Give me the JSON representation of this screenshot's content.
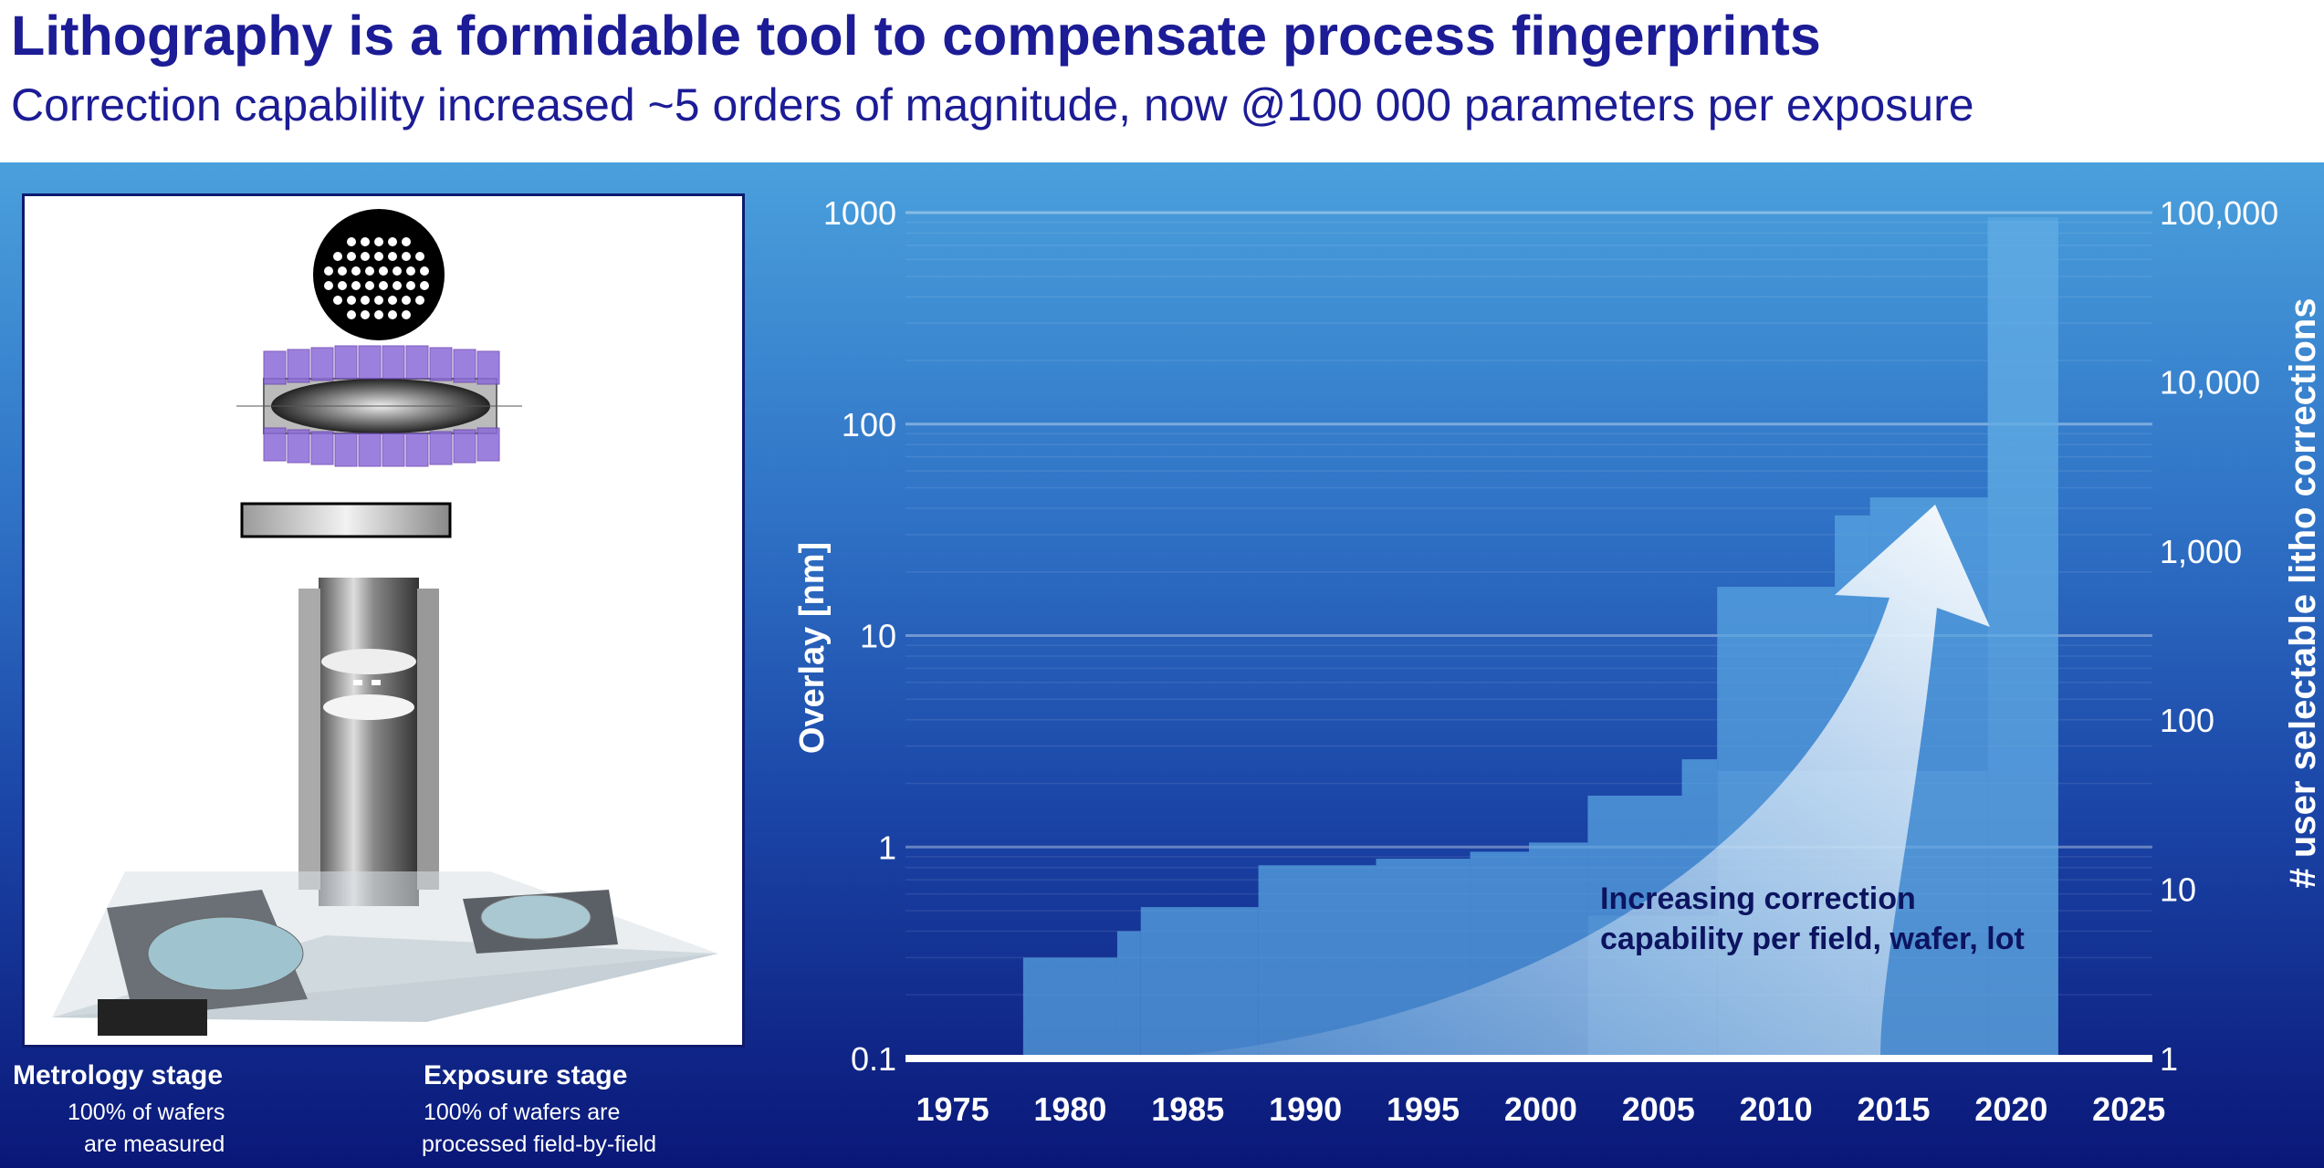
{
  "header": {
    "title": "Lithography is a formidable tool to compensate process fingerprints",
    "subtitle": "Correction capability increased ~5 orders of magnitude, now @100 000 parameters per exposure"
  },
  "left_panel": {
    "metrology": {
      "title": "Metrology stage",
      "line1": "100% of wafers",
      "line2": "are measured"
    },
    "exposure": {
      "title": "Exposure stage",
      "line1": "100% of wafers are",
      "line2": "processed field-by-field"
    }
  },
  "colors": {
    "title_text": "#1c1c96",
    "panel_top": "#4aa0dc",
    "panel_bottom": "#0a1778",
    "overlay_area": "#123a9a",
    "correction_area": "#5aa6e2"
  },
  "chart_data": {
    "type": "area",
    "xlabel": "",
    "ylabel": "Overlay [nm]",
    "y2label": "# user selectable litho corrections",
    "x_ticks": [
      "1975",
      "1980",
      "1985",
      "1990",
      "1995",
      "2000",
      "2005",
      "2010",
      "2015",
      "2020",
      "2025"
    ],
    "y_ticks": [
      "0.1",
      "1",
      "10",
      "100",
      "1000"
    ],
    "y2_ticks": [
      "1",
      "10",
      "100",
      "1,000",
      "10,000",
      "100,000"
    ],
    "xlim": [
      1973,
      2026
    ],
    "ylim": [
      0.1,
      1000
    ],
    "y2lim": [
      1,
      100000
    ],
    "y_scale": "log",
    "y2_scale": "log",
    "grid": true,
    "series": [
      {
        "axis": "left",
        "steps": [
          {
            "x_start": 1978,
            "x_end": 1982,
            "y": 0.3
          },
          {
            "x_start": 1982,
            "x_end": 1983,
            "y": 0.4
          },
          {
            "x_start": 1983,
            "x_end": 1988,
            "y": 0.52
          },
          {
            "x_start": 1988,
            "x_end": 1993,
            "y": 0.82
          },
          {
            "x_start": 1993,
            "x_end": 1997,
            "y": 0.88
          },
          {
            "x_start": 1997,
            "x_end": 1999.5,
            "y": 0.95
          },
          {
            "x_start": 1999.5,
            "x_end": 2002,
            "y": 1.05
          },
          {
            "x_start": 2002,
            "x_end": 2006,
            "y": 1.75
          },
          {
            "x_start": 2006,
            "x_end": 2007.5,
            "y": 2.6
          },
          {
            "x_start": 2007.5,
            "x_end": 2012.5,
            "y": 17
          },
          {
            "x_start": 2012.5,
            "x_end": 2014,
            "y": 37
          },
          {
            "x_start": 2014,
            "x_end": 2019,
            "y": 45
          },
          {
            "x_start": 2019,
            "x_end": 2022,
            "y": 950
          }
        ]
      },
      {
        "axis": "right",
        "steps": [
          {
            "x_start": 1978,
            "x_end": 2002,
            "y": 1
          },
          {
            "x_start": 2002,
            "x_end": 2007.5,
            "y": 7
          },
          {
            "x_start": 2007.5,
            "x_end": 2019,
            "y": 50
          },
          {
            "x_start": 2019,
            "x_end": 2022,
            "y": 90000
          }
        ]
      }
    ],
    "annotations": [
      "Increasing correction",
      "capability per field, wafer, lot"
    ]
  }
}
